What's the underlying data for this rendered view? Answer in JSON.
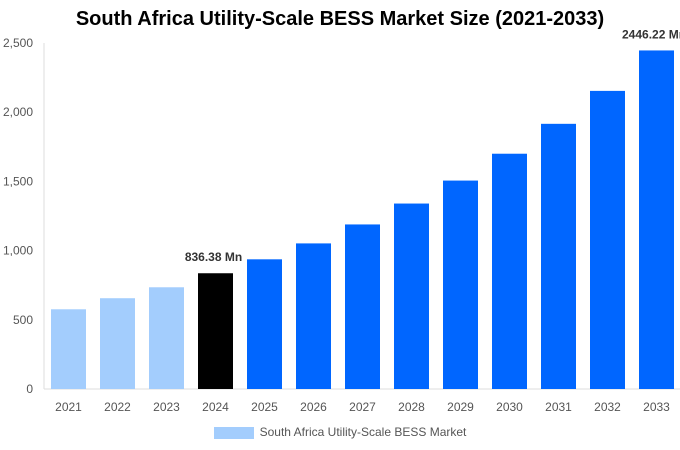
{
  "chart_data": {
    "type": "bar",
    "title": "South Africa Utility-Scale BESS Market Size (2021-2033)",
    "categories": [
      "2021",
      "2022",
      "2023",
      "2024",
      "2025",
      "2026",
      "2027",
      "2028",
      "2029",
      "2030",
      "2031",
      "2032",
      "2033"
    ],
    "series": [
      {
        "name": "South Africa Utility-Scale BESS Market",
        "values": [
          576,
          656,
          735,
          836.38,
          937,
          1052,
          1189,
          1340,
          1506,
          1700,
          1916,
          2154,
          2446.22
        ]
      }
    ],
    "data_labels": {
      "3": "836.38 Mn",
      "12": "2446.22 Mn"
    },
    "ylim": [
      0,
      2500
    ],
    "yticks": [
      0,
      500,
      1000,
      1500,
      2000,
      2500
    ],
    "ytick_labels": [
      "0",
      "500",
      "1,000",
      "1,500",
      "2,000",
      "2,500"
    ],
    "grid": false,
    "legend_position": "bottom",
    "colors": {
      "historical": "#a3cdfd",
      "base_year": "#000000",
      "forecast": "#0066ff"
    }
  }
}
